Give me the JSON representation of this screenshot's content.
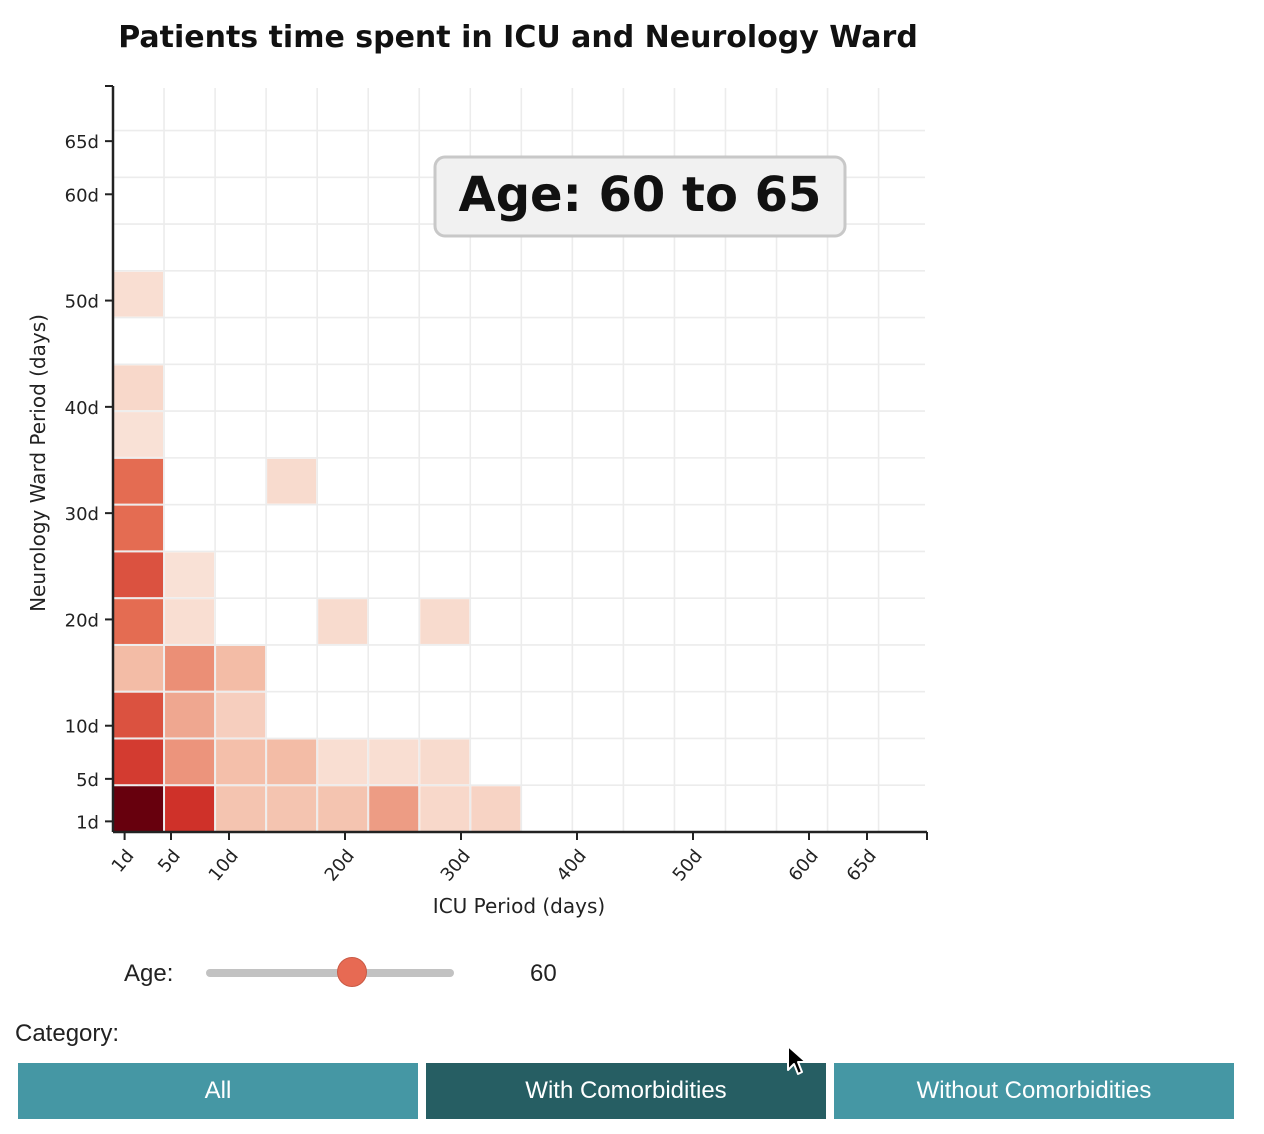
{
  "chart_data": {
    "type": "heatmap",
    "title": "Patients time spent in ICU and Neurology Ward",
    "xlabel": "ICU Period (days)",
    "ylabel": "Neurology Ward Period (days)",
    "x_ticks": [
      {
        "label": "1d",
        "value": 1
      },
      {
        "label": "5d",
        "value": 5
      },
      {
        "label": "10d",
        "value": 10
      },
      {
        "label": "20d",
        "value": 20
      },
      {
        "label": "30d",
        "value": 30
      },
      {
        "label": "40d",
        "value": 40
      },
      {
        "label": "50d",
        "value": 50
      },
      {
        "label": "60d",
        "value": 60
      },
      {
        "label": "65d",
        "value": 65
      }
    ],
    "y_ticks": [
      {
        "label": "1d",
        "value": 1
      },
      {
        "label": "5d",
        "value": 5
      },
      {
        "label": "10d",
        "value": 10
      },
      {
        "label": "20d",
        "value": 20
      },
      {
        "label": "30d",
        "value": 30
      },
      {
        "label": "40d",
        "value": 40
      },
      {
        "label": "50d",
        "value": 50
      },
      {
        "label": "60d",
        "value": 60
      },
      {
        "label": "65d",
        "value": 65
      }
    ],
    "xlim": [
      0,
      70
    ],
    "ylim": [
      0,
      70
    ],
    "bin_size": 4.4,
    "grid": true,
    "annotation": "Age: 60 to 65",
    "color_low": "#fbeae2",
    "color_high": "#67000d",
    "cells": [
      {
        "x": 0,
        "y": 0,
        "v": 1.0
      },
      {
        "x": 1,
        "y": 0,
        "v": 0.78
      },
      {
        "x": 2,
        "y": 0,
        "v": 0.25
      },
      {
        "x": 3,
        "y": 0,
        "v": 0.25
      },
      {
        "x": 4,
        "y": 0,
        "v": 0.25
      },
      {
        "x": 5,
        "y": 0,
        "v": 0.42
      },
      {
        "x": 6,
        "y": 0,
        "v": 0.12
      },
      {
        "x": 7,
        "y": 0,
        "v": 0.15
      },
      {
        "x": 0,
        "y": 1,
        "v": 0.75
      },
      {
        "x": 1,
        "y": 1,
        "v": 0.45
      },
      {
        "x": 2,
        "y": 1,
        "v": 0.28
      },
      {
        "x": 3,
        "y": 1,
        "v": 0.3
      },
      {
        "x": 4,
        "y": 1,
        "v": 0.08
      },
      {
        "x": 5,
        "y": 1,
        "v": 0.08
      },
      {
        "x": 6,
        "y": 1,
        "v": 0.1
      },
      {
        "x": 0,
        "y": 2,
        "v": 0.68
      },
      {
        "x": 1,
        "y": 2,
        "v": 0.38
      },
      {
        "x": 2,
        "y": 2,
        "v": 0.18
      },
      {
        "x": 0,
        "y": 3,
        "v": 0.3
      },
      {
        "x": 1,
        "y": 3,
        "v": 0.47
      },
      {
        "x": 2,
        "y": 3,
        "v": 0.3
      },
      {
        "x": 0,
        "y": 4,
        "v": 0.6
      },
      {
        "x": 1,
        "y": 4,
        "v": 0.08
      },
      {
        "x": 4,
        "y": 4,
        "v": 0.1
      },
      {
        "x": 6,
        "y": 4,
        "v": 0.1
      },
      {
        "x": 0,
        "y": 5,
        "v": 0.68
      },
      {
        "x": 1,
        "y": 5,
        "v": 0.06
      },
      {
        "x": 0,
        "y": 6,
        "v": 0.6
      },
      {
        "x": 0,
        "y": 7,
        "v": 0.6
      },
      {
        "x": 3,
        "y": 7,
        "v": 0.1
      },
      {
        "x": 0,
        "y": 8,
        "v": 0.06
      },
      {
        "x": 0,
        "y": 9,
        "v": 0.12
      },
      {
        "x": 0,
        "y": 11,
        "v": 0.08
      }
    ]
  },
  "controls": {
    "age_label": "Age:",
    "age_value": 60,
    "age_min": 0,
    "age_max": 100,
    "category_label": "Category:",
    "buttons": [
      {
        "label": "All",
        "active": false
      },
      {
        "label": "With Comorbidities",
        "active": true
      },
      {
        "label": "Without Comorbidities",
        "active": false
      }
    ]
  }
}
